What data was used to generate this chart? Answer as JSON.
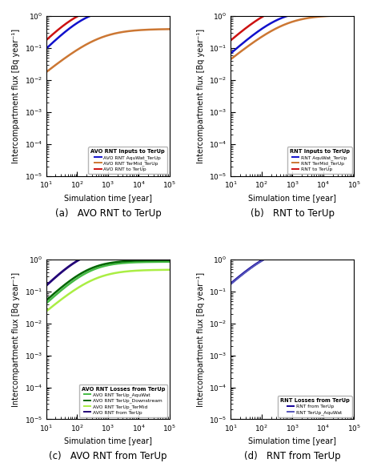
{
  "xlim": [
    10,
    100000.0
  ],
  "ylim": [
    1e-05,
    1.0
  ],
  "xlabel": "Simulation time [year]",
  "ylabel": "Intercompartment flux [Bq year⁻¹]",
  "subplots": [
    {
      "label": "(a)   AVO RNT to TerUp",
      "title": "AVO RNT Inputs to TerUp",
      "curves": [
        {
          "color": "#1111cc",
          "lw": 1.8,
          "label": "AVO RNT AquWat_TerUp",
          "y0": 1e-05,
          "ymax": 1.8,
          "log_t_mid": 2.3,
          "k": 2.2
        },
        {
          "color": "#cc7733",
          "lw": 1.8,
          "label": "AVO RNT TerMid_TerUp",
          "y0": 1e-05,
          "ymax": 0.4,
          "log_t_mid": 2.7,
          "k": 1.8
        },
        {
          "color": "#cc1111",
          "lw": 1.8,
          "label": "AVO RNT to TerUp",
          "y0": 5e-05,
          "ymax": 2.2,
          "log_t_mid": 2.1,
          "k": 2.2
        }
      ]
    },
    {
      "label": "(b)   RNT to TerUp",
      "title": "RNT Inputs to TerUp",
      "curves": [
        {
          "color": "#1111cc",
          "lw": 1.8,
          "label": "RNT AquWat_TerUp",
          "y0": 1e-05,
          "ymax": 1.6,
          "log_t_mid": 2.55,
          "k": 2.0
        },
        {
          "color": "#cc7733",
          "lw": 1.8,
          "label": "RNT TerMid_TerUp",
          "y0": 1e-05,
          "ymax": 1.1,
          "log_t_mid": 2.75,
          "k": 1.8
        },
        {
          "color": "#cc1111",
          "lw": 1.8,
          "label": "RNT to TerUp",
          "y0": 0.0003,
          "ymax": 2.8,
          "log_t_mid": 2.35,
          "k": 2.0
        }
      ]
    },
    {
      "label": "(c)   AVO RNT from TerUp",
      "title": "AVO RNT Losses from TerUp",
      "curves": [
        {
          "color": "#44bb44",
          "lw": 1.8,
          "label": "AVO RNT TerUp_AquWat",
          "y0": 1e-05,
          "ymax": 0.85,
          "log_t_mid": 2.4,
          "k": 2.1
        },
        {
          "color": "#006600",
          "lw": 1.8,
          "label": "AVO RNT TerUp_Downstream",
          "y0": 1e-05,
          "ymax": 0.95,
          "log_t_mid": 2.35,
          "k": 2.1
        },
        {
          "color": "#aaee44",
          "lw": 1.8,
          "label": "AVO RNT TerUp_TerMid",
          "y0": 1e-05,
          "ymax": 0.48,
          "log_t_mid": 2.55,
          "k": 1.9
        },
        {
          "color": "#220077",
          "lw": 2.0,
          "label": "AVO RNT from TerUp",
          "y0": 1e-05,
          "ymax": 2.3,
          "log_t_mid": 2.2,
          "k": 2.2
        }
      ]
    },
    {
      "label": "(d)   RNT from TerUp",
      "title": "RNT Losses from TerUp",
      "curves": [
        {
          "color": "#110099",
          "lw": 2.0,
          "label": "RNT from TerUp",
          "y0": 1e-05,
          "ymax": 2.8,
          "log_t_mid": 2.35,
          "k": 2.0
        },
        {
          "color": "#5555bb",
          "lw": 1.5,
          "label": "RNT TerUp_AquWat",
          "y0": 1e-05,
          "ymax": 2.75,
          "log_t_mid": 2.36,
          "k": 2.0
        }
      ]
    }
  ]
}
